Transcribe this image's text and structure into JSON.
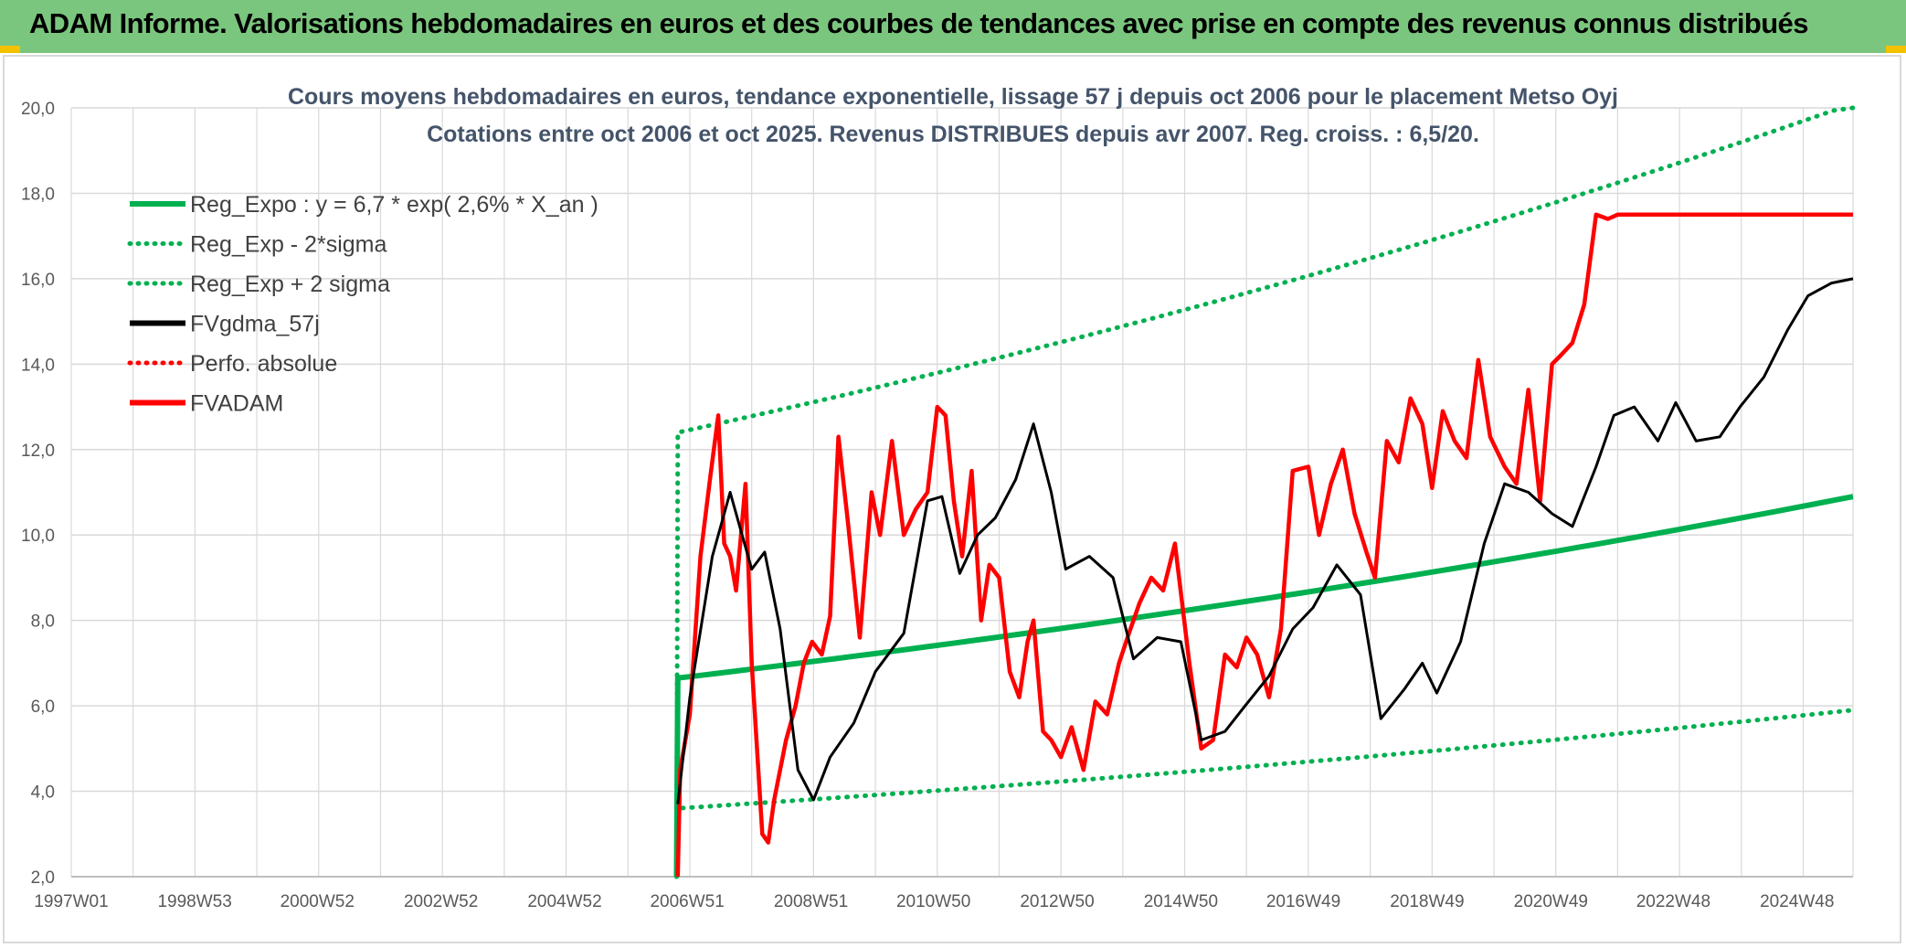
{
  "banner": {
    "title": "ADAM Informe. Valorisations hebdomadaires en euros et des courbes de tendances avec prise en compte des revenus connus distribués"
  },
  "colors": {
    "banner_bg": "#7bc67e",
    "trend_green": "#00b050",
    "band_green": "#00b050",
    "smooth_black": "#000000",
    "price_red": "#ff0000",
    "grid": "#d9d9d9"
  },
  "chart_data": {
    "type": "line",
    "title": "Cours moyens hebdomadaires en euros, tendance exponentielle, lissage 57 j depuis oct 2006 pour le placement Metso Oyj",
    "subtitle": "Cotations entre oct 2006 et oct 2025. Revenus DISTRIBUES depuis avr 2007. Reg. croiss. : 6,5/20.",
    "x_range": [
      "1997W01",
      "2025W43"
    ],
    "x_ticks": [
      "1997W01",
      "1998W53",
      "2000W52",
      "2002W52",
      "2004W52",
      "2006W51",
      "2008W51",
      "2010W50",
      "2012W50",
      "2014W50",
      "2016W49",
      "2018W49",
      "2020W49",
      "2022W48",
      "2024W48"
    ],
    "ylim": [
      2.0,
      20.0
    ],
    "y_ticks": [
      "2,0",
      "4,0",
      "6,0",
      "8,0",
      "10,0",
      "12,0",
      "14,0",
      "16,0",
      "18,0",
      "20,0"
    ],
    "grid": true,
    "legend_position": "top-left",
    "legend": [
      {
        "label": "Reg_Expo : y = 6,7 * exp( 2,6% *  X_an )",
        "style": "solid",
        "color": "#00b050"
      },
      {
        "label": "Reg_Exp - 2*sigma",
        "style": "dotted",
        "color": "#00b050"
      },
      {
        "label": "Reg_Exp + 2 sigma",
        "style": "dotted",
        "color": "#00b050"
      },
      {
        "label": "FVgdma_57j",
        "style": "solid",
        "color": "#000000"
      },
      {
        "label": "Perfo. absolue",
        "style": "dotted",
        "color": "#ff0000"
      },
      {
        "label": "FVADAM",
        "style": "solid",
        "color": "#ff0000"
      }
    ],
    "series": [
      {
        "name": "Reg_Expo : y = 6,7 * exp( 2,6% *  X_an )",
        "x": [
          "2006W42",
          "2006W43",
          "2025W43"
        ],
        "values": [
          2.0,
          6.65,
          10.9
        ]
      },
      {
        "name": "Reg_Exp - 2*sigma",
        "x": [
          "2006W42",
          "2006W43",
          "2025W43"
        ],
        "values": [
          2.0,
          3.6,
          5.9
        ]
      },
      {
        "name": "Reg_Exp + 2 sigma",
        "x": [
          "2006W42",
          "2006W43",
          "2025W43"
        ],
        "values": [
          2.0,
          12.4,
          20.1
        ]
      },
      {
        "name": "FVgdma_57j",
        "x": [
          "2006W43",
          "2007W01",
          "2007W20",
          "2007W35",
          "2008W01",
          "2008W12",
          "2008W25",
          "2008W40",
          "2009W01",
          "2009W15",
          "2009W35",
          "2010W01",
          "2010W25",
          "2010W45",
          "2011W05",
          "2011W20",
          "2011W35",
          "2011W50",
          "2012W15",
          "2012W30",
          "2012W45",
          "2013W05",
          "2013W25",
          "2013W45",
          "2014W10",
          "2014W30",
          "2014W50",
          "2015W15",
          "2015W35",
          "2015W52",
          "2016W20",
          "2016W40",
          "2017W05",
          "2017W25",
          "2017W45",
          "2018W10",
          "2018W30",
          "2018W45",
          "2019W05",
          "2019W25",
          "2019W45",
          "2020W10",
          "2020W30",
          "2020W50",
          "2021W15",
          "2021W35",
          "2021W50",
          "2022W15",
          "2022W35",
          "2022W50",
          "2023W15",
          "2023W35",
          "2023W52",
          "2024W20",
          "2024W40",
          "2025W05",
          "2025W25",
          "2025W43"
        ],
        "values": [
          3.7,
          6.2,
          9.5,
          11.0,
          9.2,
          9.6,
          7.8,
          4.5,
          3.8,
          4.8,
          5.6,
          6.8,
          7.7,
          10.8,
          10.9,
          9.1,
          10.0,
          10.4,
          11.3,
          12.6,
          11.0,
          9.2,
          9.5,
          9.0,
          7.1,
          7.6,
          7.5,
          5.2,
          5.4,
          6.0,
          6.7,
          7.8,
          8.3,
          9.3,
          8.6,
          5.7,
          6.4,
          7.0,
          6.3,
          7.5,
          9.8,
          11.2,
          11.0,
          10.5,
          10.2,
          11.6,
          12.8,
          13.0,
          12.2,
          13.1,
          12.2,
          12.3,
          13.0,
          13.7,
          14.8,
          15.6,
          15.9,
          16.0
        ]
      },
      {
        "name": "FVADAM",
        "x": [
          "2006W43",
          "2006W45",
          "2007W01",
          "2007W10",
          "2007W18",
          "2007W25",
          "2007W30",
          "2007W35",
          "2007W40",
          "2007W48",
          "2008W01",
          "2008W10",
          "2008W15",
          "2008W20",
          "2008W25",
          "2008W30",
          "2008W38",
          "2008W45",
          "2008W52",
          "2009W08",
          "2009W15",
          "2009W22",
          "2009W30",
          "2009W40",
          "2009W50",
          "2010W05",
          "2010W15",
          "2010W25",
          "2010W35",
          "2010W45",
          "2011W01",
          "2011W08",
          "2011W15",
          "2011W22",
          "2011W30",
          "2011W38",
          "2011W45",
          "2012W01",
          "2012W10",
          "2012W18",
          "2012W25",
          "2012W30",
          "2012W38",
          "2012W45",
          "2013W01",
          "2013W10",
          "2013W20",
          "2013W30",
          "2013W40",
          "2013W50",
          "2014W05",
          "2014W15",
          "2014W25",
          "2014W35",
          "2014W45",
          "2015W05",
          "2015W15",
          "2015W25",
          "2015W35",
          "2015W45",
          "2016W01",
          "2016W10",
          "2016W20",
          "2016W30",
          "2016W40",
          "2017W01",
          "2017W10",
          "2017W20",
          "2017W30",
          "2017W40",
          "2017W50",
          "2018W05",
          "2018W15",
          "2018W25",
          "2018W35",
          "2018W45",
          "2019W01",
          "2019W10",
          "2019W20",
          "2019W30",
          "2019W40",
          "2019W50",
          "2020W10",
          "2020W20",
          "2020W30",
          "2020W40",
          "2020W50",
          "2021W05",
          "2021W15",
          "2021W25",
          "2021W35",
          "2021W45",
          "2022W01",
          "2022W10",
          "2022W20",
          "2022W30",
          "2022W40",
          "2022W50",
          "2023W05",
          "2023W15",
          "2023W25",
          "2023W35",
          "2023W45",
          "2024W01",
          "2024W10",
          "2024W20",
          "2024W30",
          "2024W40",
          "2024W50",
          "2025W05",
          "2025W15",
          "2025W25",
          "2025W35",
          "2025W40",
          "2025W43"
        ],
        "values": [
          2.0,
          4.5,
          5.8,
          9.5,
          11.3,
          12.8,
          9.8,
          9.5,
          8.7,
          11.2,
          7.0,
          3.0,
          2.8,
          3.8,
          4.5,
          5.2,
          6.0,
          7.0,
          7.5,
          7.2,
          8.1,
          12.3,
          10.3,
          7.6,
          11.0,
          10.0,
          12.2,
          10.0,
          10.6,
          11.0,
          13.0,
          12.8,
          10.8,
          9.5,
          11.5,
          8.0,
          9.3,
          9.0,
          6.8,
          6.2,
          7.5,
          8.0,
          5.4,
          5.2,
          4.8,
          5.5,
          4.5,
          6.1,
          5.8,
          7.0,
          7.6,
          8.4,
          9.0,
          8.7,
          9.8,
          7.0,
          5.0,
          5.2,
          7.2,
          6.9,
          7.6,
          7.2,
          6.2,
          7.8,
          11.5,
          11.6,
          10.0,
          11.2,
          12.0,
          10.5,
          9.6,
          9.0,
          12.2,
          11.7,
          13.2,
          12.6,
          11.1,
          12.9,
          12.2,
          11.8,
          14.1,
          12.3,
          11.6,
          11.2,
          13.4,
          10.8,
          14.0,
          14.2,
          14.5,
          15.4,
          17.5,
          17.4,
          17.5,
          17.5,
          17.5,
          17.5,
          17.5,
          17.5,
          17.5,
          17.5,
          17.5,
          17.5,
          17.5,
          17.5,
          17.5,
          17.5,
          17.5,
          17.5,
          17.5,
          17.5,
          17.5,
          17.5,
          17.5,
          17.5,
          17.5
        ]
      }
    ]
  }
}
